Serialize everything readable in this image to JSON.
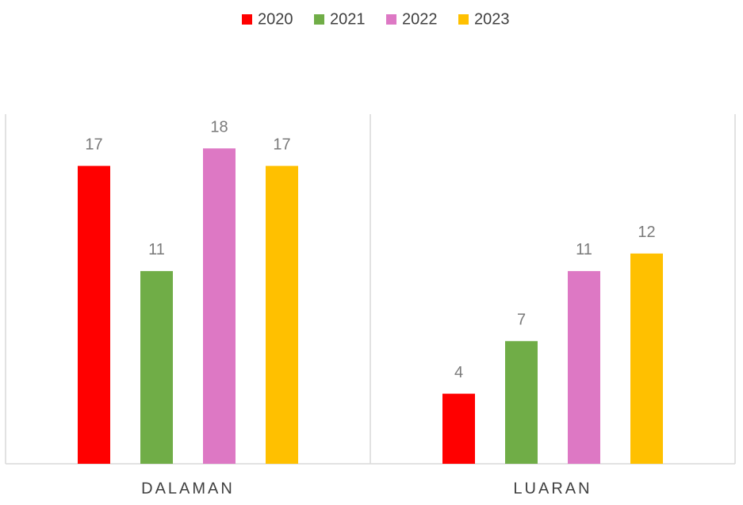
{
  "chart_data": {
    "type": "bar",
    "categories": [
      "DALAMAN",
      "LUARAN"
    ],
    "series": [
      {
        "name": "2020",
        "color": "#ff0000",
        "values": [
          17,
          4
        ]
      },
      {
        "name": "2021",
        "color": "#70ad47",
        "values": [
          11,
          7
        ]
      },
      {
        "name": "2022",
        "color": "#dd78c4",
        "values": [
          18,
          11
        ]
      },
      {
        "name": "2023",
        "color": "#ffc000",
        "values": [
          17,
          12
        ]
      }
    ]
  }
}
